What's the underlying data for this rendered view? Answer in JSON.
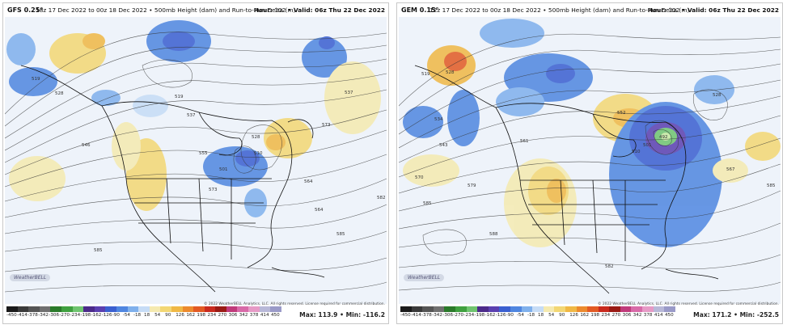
{
  "panels": [
    {
      "model": "GFS 0.25°",
      "subtitle": "18z 17 Dec 2022 to 00z 18 Dec 2022 • 500mb Height (dam) and Run-to-Run Delta (m)",
      "hour_label": "Hour:",
      "hour": "102",
      "valid": "• Valid: 06z Thu 22 Dec 2022",
      "max_min": "Max: 113.9 • Min: -116.2",
      "copyright": "© 2022 WeatherBELL Analytics, LLC. All rights reserved. License required for commercial distribution.",
      "logo": "WeatherBELL",
      "contour_labels": [
        "519",
        "528",
        "537",
        "546",
        "555",
        "564",
        "573",
        "582",
        "585",
        "510",
        "501",
        "519",
        "528",
        "537",
        "564",
        "573",
        "585"
      ]
    },
    {
      "model": "GEM 0.15°",
      "subtitle": "12z 17 Dec 2022 to 00z 18 Dec 2022 • 500mb Height (dam) and Run-to-Run Delta (m)",
      "hour_label": "Hour:",
      "hour": "102",
      "valid": "• Valid: 06z Thu 22 Dec 2022",
      "max_min": "Max: 171.2 • Min: -252.5",
      "copyright": "© 2022 WeatherBELL Analytics, LLC. All rights reserved. License required for commercial distribution.",
      "logo": "WeatherBELL",
      "contour_labels": [
        "519",
        "528",
        "534",
        "543",
        "552",
        "561",
        "570",
        "579",
        "585",
        "588",
        "582",
        "492",
        "501",
        "510",
        "528",
        "567",
        "585"
      ]
    }
  ],
  "colorbar": {
    "ticks": [
      "-450",
      "-414",
      "-378",
      "-342",
      "-306",
      "-270",
      "-234",
      "-198",
      "-162",
      "-126",
      "-90",
      "-54",
      "-18",
      "18",
      "54",
      "90",
      "126",
      "162",
      "198",
      "234",
      "270",
      "306",
      "342",
      "378",
      "414",
      "450"
    ],
    "colors": [
      "#1a1a1a",
      "#3a3a3a",
      "#555555",
      "#707070",
      "#2a7a2a",
      "#3fa03f",
      "#6fc46f",
      "#4b2a8a",
      "#5a3fb0",
      "#3a5fd0",
      "#4f86e0",
      "#7fb0ec",
      "#c6dcf6",
      "#f5eab0",
      "#f3d774",
      "#f0b845",
      "#ec8a2e",
      "#e25a24",
      "#c92a1e",
      "#9a1a14",
      "#c03a7a",
      "#d86aa8",
      "#e69ac6",
      "#b8b8d8",
      "#9a9ac8"
    ]
  }
}
